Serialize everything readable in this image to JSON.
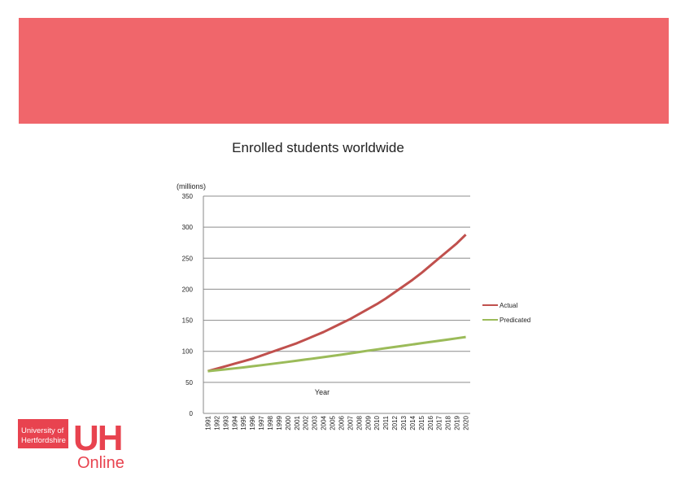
{
  "banner": {
    "color": "#f0666b"
  },
  "chart_data": {
    "type": "line",
    "title": "Enrolled students worldwide",
    "ylabel": "(millions)",
    "xlabel": "Year",
    "ylim": [
      0,
      350
    ],
    "yticks": [
      0,
      50,
      100,
      150,
      200,
      250,
      300,
      350
    ],
    "grid": true,
    "legend_position": "right",
    "x": [
      "1991",
      "1992",
      "1993",
      "1994",
      "1995",
      "1996",
      "1997",
      "1998",
      "1999",
      "2000",
      "2001",
      "2002",
      "2003",
      "2004",
      "2005",
      "2006",
      "2007",
      "2008",
      "2009",
      "2010",
      "2011",
      "2012",
      "2013",
      "2014",
      "2015",
      "2016",
      "2017",
      "2018",
      "2019",
      "2020"
    ],
    "series": [
      {
        "name": "Actual",
        "color": "#c0504d",
        "values": [
          68,
          72,
          76,
          80,
          84,
          88,
          93,
          98,
          103,
          108,
          113,
          119,
          125,
          131,
          138,
          145,
          152,
          160,
          168,
          176,
          185,
          195,
          205,
          215,
          226,
          238,
          250,
          262,
          274,
          288
        ]
      },
      {
        "name": "Predicated",
        "color": "#9bbb59",
        "values": [
          68,
          69.5,
          71,
          72.5,
          74,
          75.8,
          77.6,
          79.4,
          81.2,
          83,
          84.9,
          86.8,
          88.7,
          90.6,
          92.6,
          94.6,
          96.7,
          98.8,
          101,
          103,
          105,
          107,
          109,
          111,
          113,
          115,
          117,
          119,
          121,
          123
        ]
      }
    ]
  },
  "logo": {
    "line1": "University of",
    "line2": "Hertfordshire",
    "mark": "UH",
    "word": "Online",
    "color": "#e8434f"
  }
}
